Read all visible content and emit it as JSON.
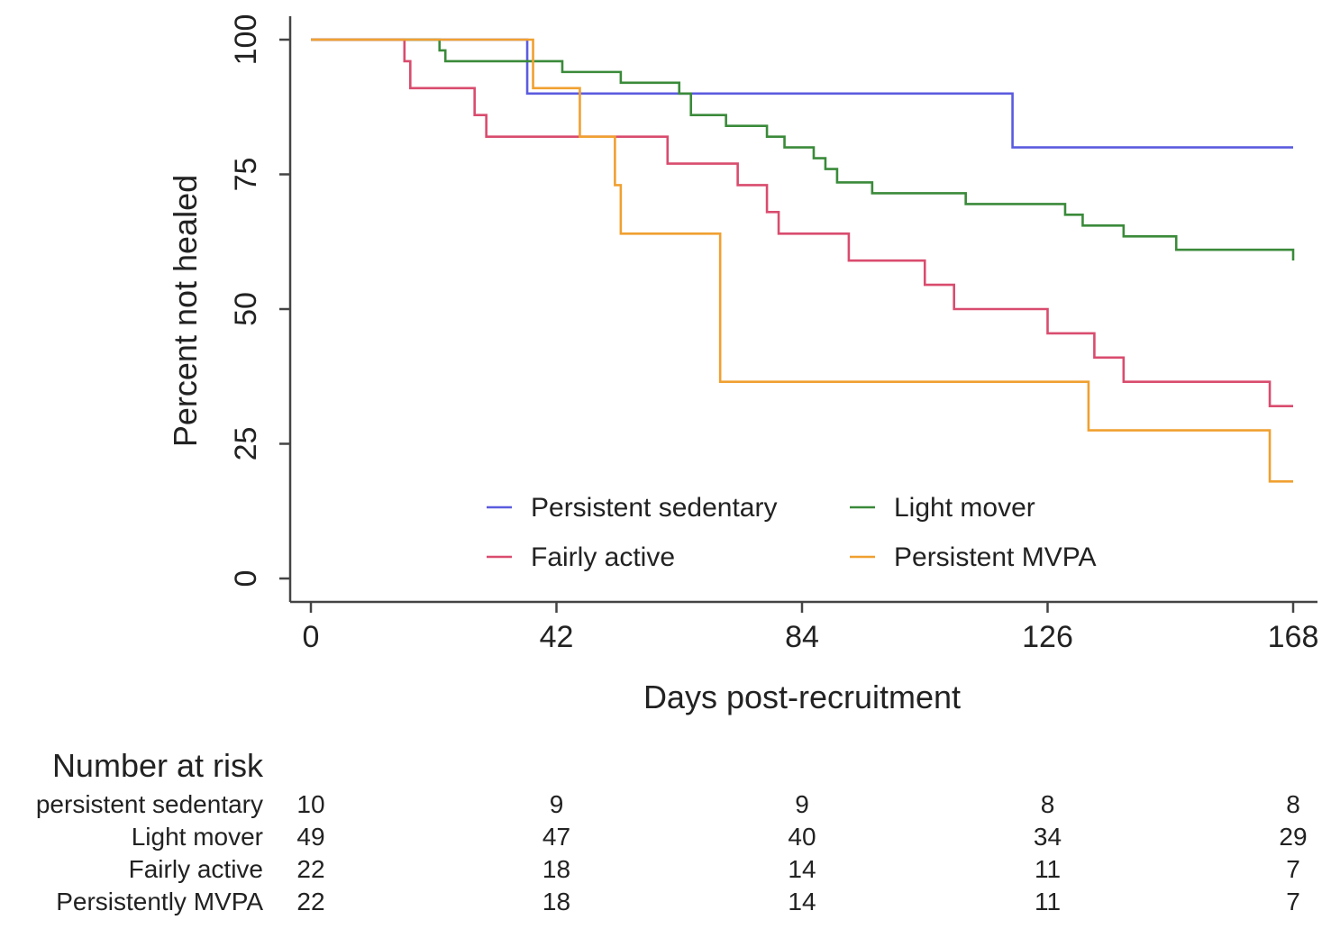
{
  "chart_data": {
    "type": "line",
    "title": "",
    "xlabel": "Days post-recruitment",
    "ylabel": "Percent not healed",
    "xlim": [
      0,
      168
    ],
    "ylim": [
      0,
      100
    ],
    "xticks": [
      0,
      42,
      84,
      126,
      168
    ],
    "yticks": [
      0,
      25,
      50,
      75,
      100
    ],
    "xtick_labels": [
      "0",
      "42",
      "84",
      "126",
      "168"
    ],
    "ytick_labels": [
      "0",
      "25",
      "50",
      "75",
      "100"
    ],
    "grid": false,
    "legend_position": "bottom-center",
    "series": [
      {
        "name": "Persistent sedentary",
        "color": "#5b5bdf",
        "steps": [
          [
            0,
            100
          ],
          [
            37,
            90
          ],
          [
            120,
            80
          ],
          [
            168,
            80
          ]
        ]
      },
      {
        "name": "Light mover",
        "color": "#3a8a3a",
        "steps": [
          [
            0,
            100
          ],
          [
            22,
            98
          ],
          [
            23,
            96
          ],
          [
            43,
            94
          ],
          [
            53,
            92
          ],
          [
            63,
            90
          ],
          [
            65,
            86
          ],
          [
            71,
            84
          ],
          [
            78,
            82
          ],
          [
            81,
            80
          ],
          [
            86,
            78
          ],
          [
            88,
            76
          ],
          [
            90,
            73.5
          ],
          [
            96,
            71.5
          ],
          [
            112,
            69.5
          ],
          [
            129,
            67.5
          ],
          [
            132,
            65.5
          ],
          [
            139,
            63.5
          ],
          [
            148,
            61
          ],
          [
            168,
            59
          ]
        ]
      },
      {
        "name": "Fairly active",
        "color": "#d94c6e",
        "steps": [
          [
            0,
            100
          ],
          [
            16,
            96
          ],
          [
            17,
            91
          ],
          [
            28,
            86
          ],
          [
            30,
            82
          ],
          [
            61,
            77
          ],
          [
            73,
            73
          ],
          [
            78,
            68
          ],
          [
            80,
            64
          ],
          [
            92,
            59
          ],
          [
            105,
            54.5
          ],
          [
            110,
            50
          ],
          [
            126,
            45.5
          ],
          [
            134,
            41
          ],
          [
            139,
            36.5
          ],
          [
            164,
            32
          ],
          [
            168,
            32
          ]
        ]
      },
      {
        "name": "Persistent MVPA",
        "color": "#f0a030",
        "steps": [
          [
            0,
            100
          ],
          [
            38,
            91
          ],
          [
            46,
            82
          ],
          [
            52,
            73
          ],
          [
            53,
            64
          ],
          [
            70,
            36.5
          ],
          [
            133,
            27.5
          ],
          [
            164,
            18
          ],
          [
            168,
            18
          ]
        ]
      }
    ],
    "legend": [
      {
        "label": "Persistent sedentary",
        "color": "#5b5bdf"
      },
      {
        "label": "Light mover",
        "color": "#3a8a3a"
      },
      {
        "label": "Fairly active",
        "color": "#d94c6e"
      },
      {
        "label": "Persistent MVPA",
        "color": "#f0a030"
      }
    ],
    "risk_table": {
      "title": "Number at risk",
      "times": [
        0,
        42,
        84,
        126,
        168
      ],
      "rows": [
        {
          "label": "persistent sedentary",
          "values": [
            "10",
            "9",
            "9",
            "8",
            "8"
          ]
        },
        {
          "label": "Light mover",
          "values": [
            "49",
            "47",
            "40",
            "34",
            "29"
          ]
        },
        {
          "label": "Fairly active",
          "values": [
            "22",
            "18",
            "14",
            "11",
            "7"
          ]
        },
        {
          "label": "Persistently MVPA",
          "values": [
            "22",
            "18",
            "14",
            "11",
            "7"
          ]
        }
      ]
    }
  }
}
